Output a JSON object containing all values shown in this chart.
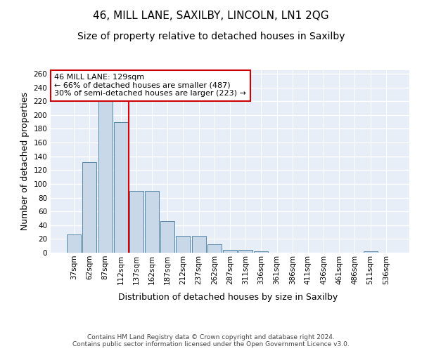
{
  "title_line1": "46, MILL LANE, SAXILBY, LINCOLN, LN1 2QG",
  "title_line2": "Size of property relative to detached houses in Saxilby",
  "xlabel": "Distribution of detached houses by size in Saxilby",
  "ylabel": "Number of detached properties",
  "categories": [
    "37sqm",
    "62sqm",
    "87sqm",
    "112sqm",
    "137sqm",
    "162sqm",
    "187sqm",
    "212sqm",
    "237sqm",
    "262sqm",
    "287sqm",
    "311sqm",
    "336sqm",
    "361sqm",
    "386sqm",
    "411sqm",
    "436sqm",
    "461sqm",
    "486sqm",
    "511sqm",
    "536sqm"
  ],
  "values": [
    27,
    131,
    220,
    190,
    90,
    90,
    46,
    24,
    24,
    12,
    4,
    4,
    2,
    0,
    0,
    0,
    0,
    0,
    0,
    2,
    0
  ],
  "bar_color": "#c8d8e8",
  "bar_edge_color": "#5588aa",
  "red_line_color": "#dd0000",
  "annotation_text": "46 MILL LANE: 129sqm\n← 66% of detached houses are smaller (487)\n30% of semi-detached houses are larger (223) →",
  "annotation_box_color": "white",
  "annotation_box_edge_color": "#cc0000",
  "ylim": [
    0,
    265
  ],
  "yticks": [
    0,
    20,
    40,
    60,
    80,
    100,
    120,
    140,
    160,
    180,
    200,
    220,
    240,
    260
  ],
  "background_color": "#e8eef8",
  "grid_color": "white",
  "footer_text": "Contains HM Land Registry data © Crown copyright and database right 2024.\nContains public sector information licensed under the Open Government Licence v3.0.",
  "title_fontsize": 11,
  "subtitle_fontsize": 10,
  "ylabel_fontsize": 9,
  "xlabel_fontsize": 9,
  "tick_fontsize": 7.5,
  "annotation_fontsize": 8,
  "footer_fontsize": 6.5
}
